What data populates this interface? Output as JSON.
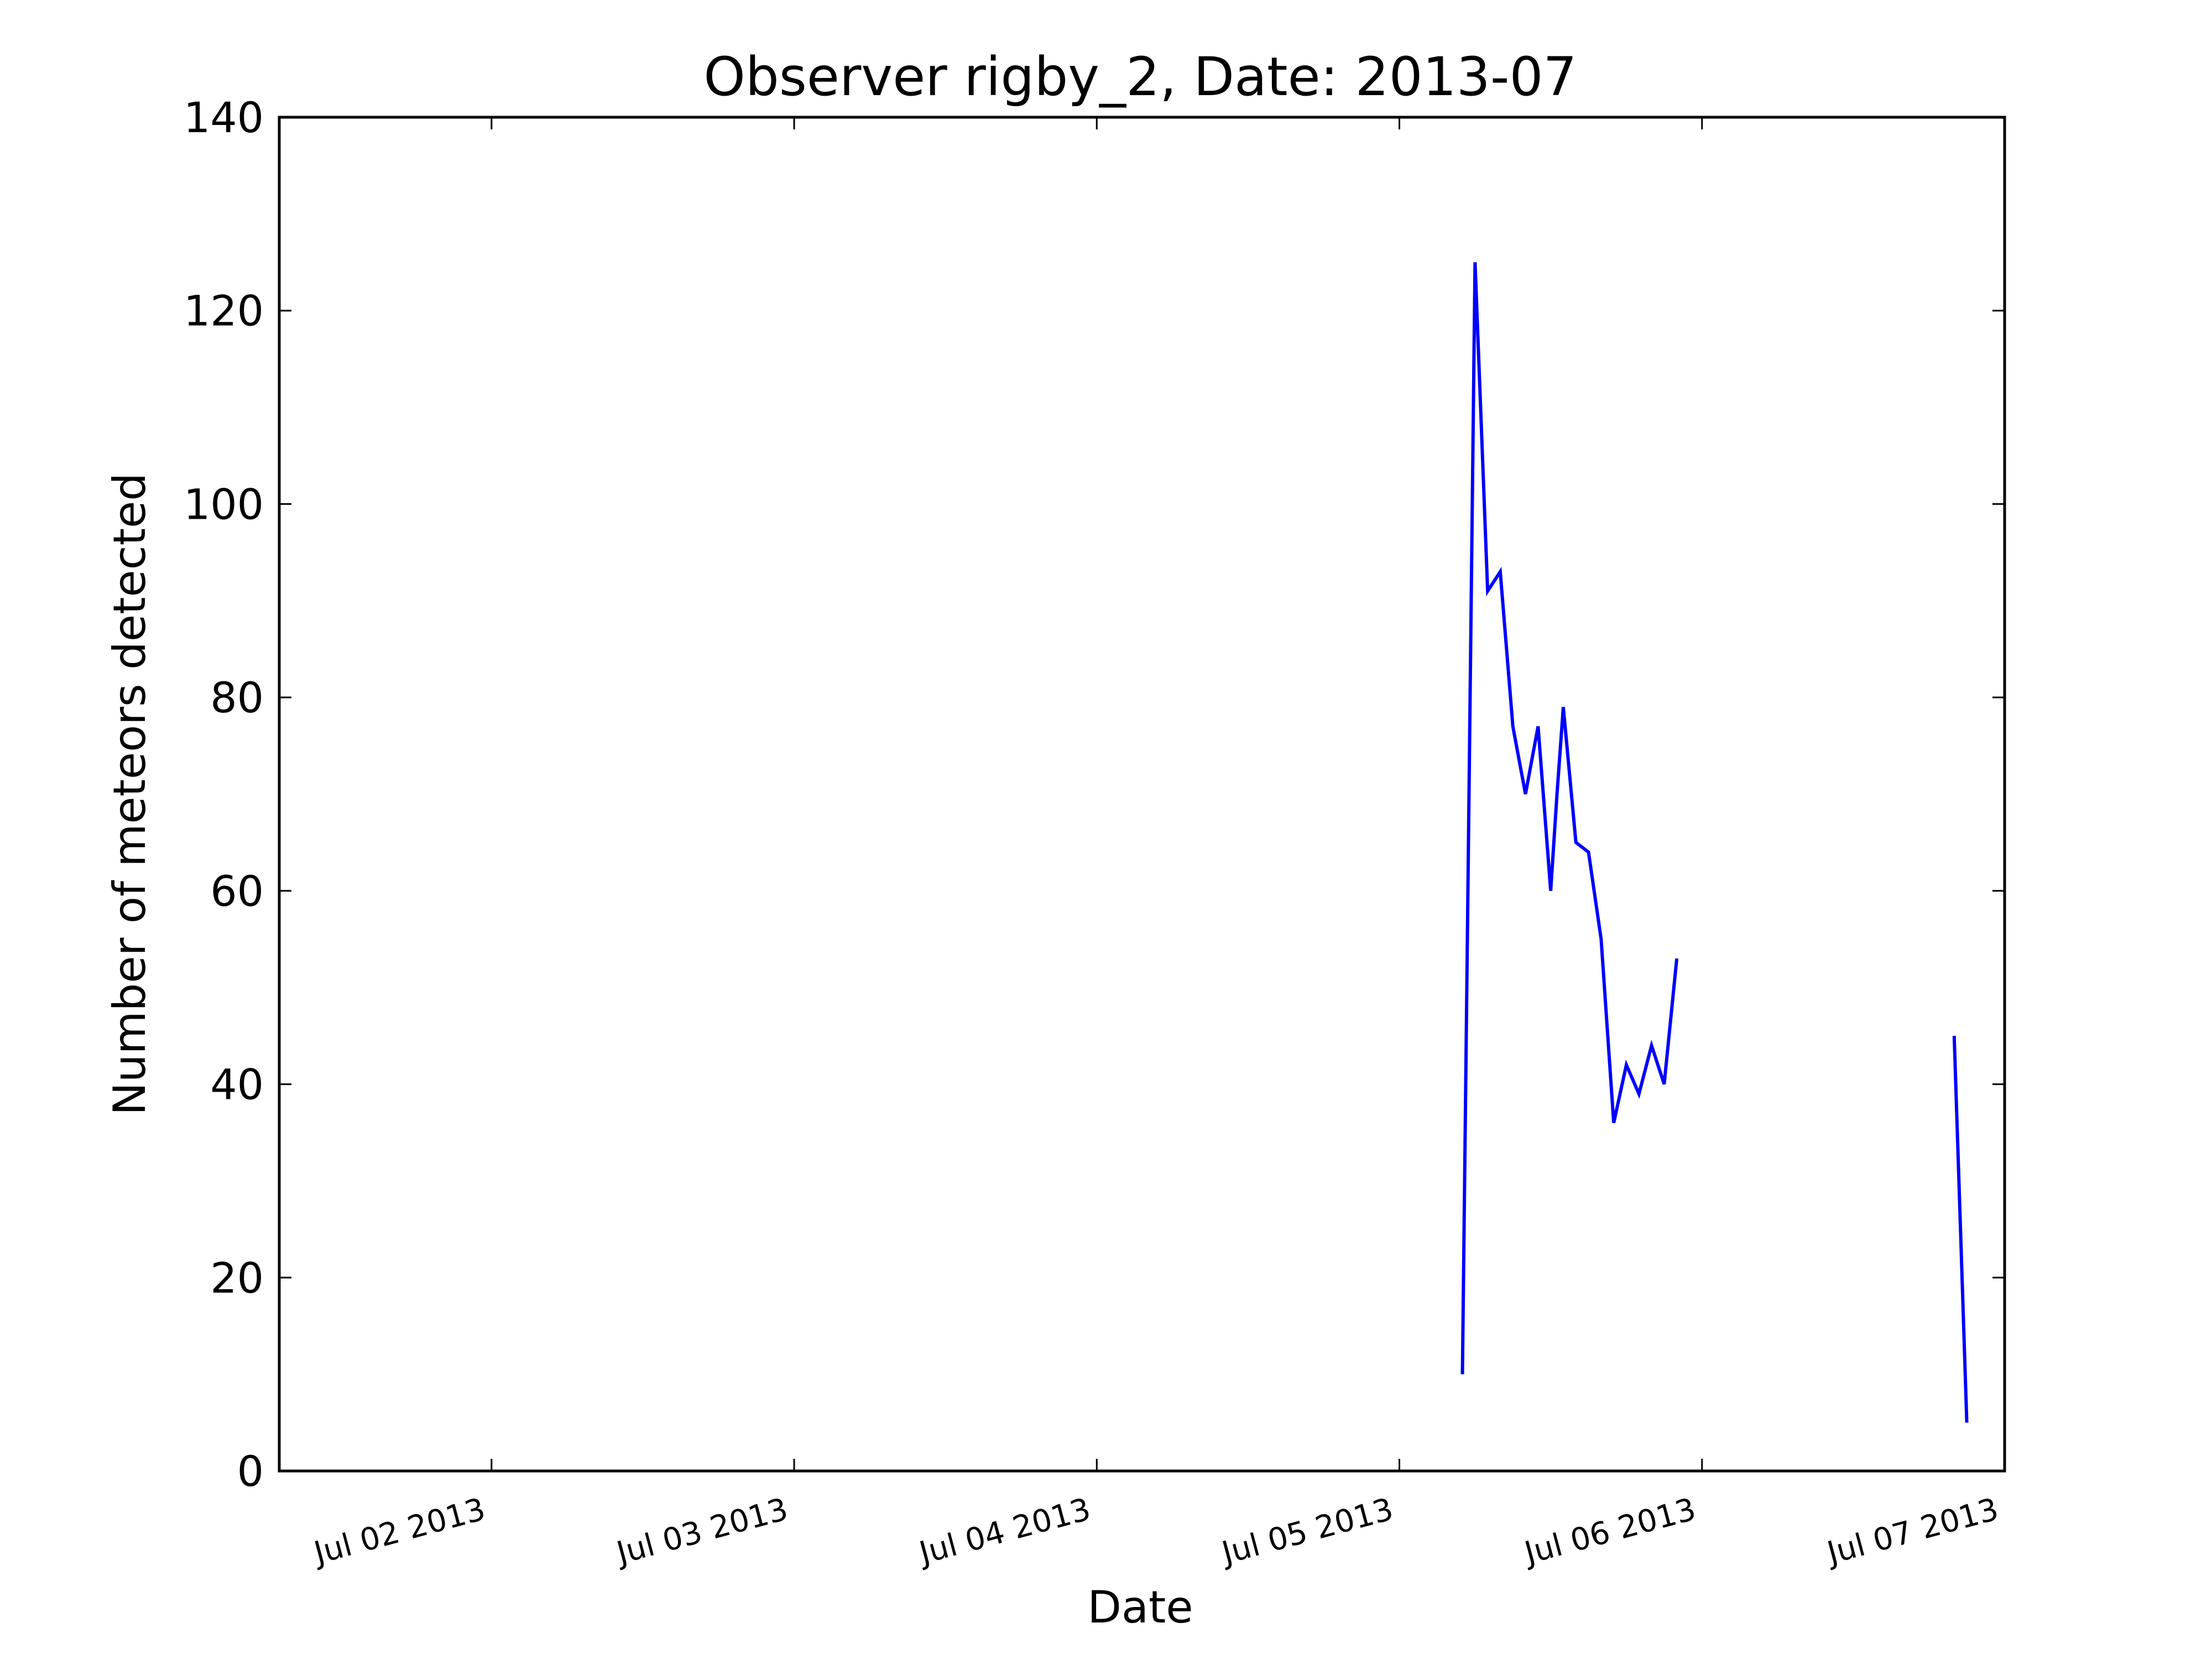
{
  "chart_data": {
    "type": "line",
    "title": "Observer rigby_2, Date: 2013-07",
    "xlabel": "Date",
    "ylabel": "Number of meteors detected",
    "x_axis_type": "datetime",
    "xlim": [
      "2013-07-01T07:10",
      "2013-07-07T00:00"
    ],
    "ylim": [
      0,
      140
    ],
    "xticks": [
      {
        "value": "2013-07-02T00:00",
        "label": "Jul 02 2013"
      },
      {
        "value": "2013-07-03T00:00",
        "label": "Jul 03 2013"
      },
      {
        "value": "2013-07-04T00:00",
        "label": "Jul 04 2013"
      },
      {
        "value": "2013-07-05T00:00",
        "label": "Jul 05 2013"
      },
      {
        "value": "2013-07-06T00:00",
        "label": "Jul 06 2013"
      },
      {
        "value": "2013-07-07T00:00",
        "label": "Jul 07 2013"
      }
    ],
    "yticks": [
      0,
      20,
      40,
      60,
      80,
      100,
      120,
      140
    ],
    "grid": false,
    "color": "#0000ff",
    "series": [
      {
        "segments": [
          [
            {
              "x": "2013-07-05T05:00",
              "y": 10
            },
            {
              "x": "2013-07-05T06:00",
              "y": 125
            },
            {
              "x": "2013-07-05T07:00",
              "y": 91
            },
            {
              "x": "2013-07-05T08:00",
              "y": 93
            },
            {
              "x": "2013-07-05T09:00",
              "y": 77
            },
            {
              "x": "2013-07-05T10:00",
              "y": 70
            },
            {
              "x": "2013-07-05T11:00",
              "y": 77
            },
            {
              "x": "2013-07-05T12:00",
              "y": 60
            },
            {
              "x": "2013-07-05T12:30",
              "y": 70
            },
            {
              "x": "2013-07-05T13:00",
              "y": 79
            },
            {
              "x": "2013-07-05T14:00",
              "y": 65
            },
            {
              "x": "2013-07-05T15:00",
              "y": 64
            },
            {
              "x": "2013-07-05T16:00",
              "y": 55
            },
            {
              "x": "2013-07-05T17:00",
              "y": 36
            },
            {
              "x": "2013-07-05T18:00",
              "y": 42
            },
            {
              "x": "2013-07-05T19:00",
              "y": 39
            },
            {
              "x": "2013-07-05T20:00",
              "y": 44
            },
            {
              "x": "2013-07-05T21:00",
              "y": 40
            },
            {
              "x": "2013-07-05T22:00",
              "y": 53
            }
          ],
          [
            {
              "x": "2013-07-06T20:00",
              "y": 45
            },
            {
              "x": "2013-07-06T21:00",
              "y": 5
            }
          ]
        ]
      }
    ]
  }
}
